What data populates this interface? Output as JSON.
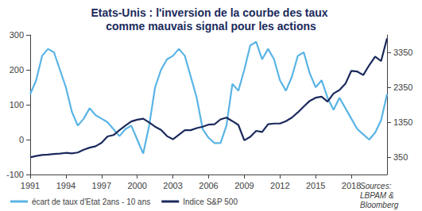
{
  "chart_data": {
    "type": "line",
    "title": "Etats-Unis : l'inversion de la courbe des taux comme mauvais signal pour les actions",
    "annotation": "Sources: LBPAM & Bloomberg",
    "x": [
      1991.0,
      1991.5,
      1992.0,
      1992.5,
      1993.0,
      1993.5,
      1994.0,
      1994.5,
      1995.0,
      1995.5,
      1996.0,
      1996.5,
      1997.0,
      1997.5,
      1998.0,
      1998.5,
      1999.0,
      1999.5,
      2000.0,
      2000.5,
      2001.0,
      2001.5,
      2002.0,
      2002.5,
      2003.0,
      2003.5,
      2004.0,
      2004.5,
      2005.0,
      2005.5,
      2006.0,
      2006.5,
      2007.0,
      2007.5,
      2008.0,
      2008.5,
      2009.0,
      2009.5,
      2010.0,
      2010.5,
      2011.0,
      2011.5,
      2012.0,
      2012.5,
      2013.0,
      2013.5,
      2014.0,
      2014.5,
      2015.0,
      2015.5,
      2016.0,
      2016.5,
      2017.0,
      2017.5,
      2018.0,
      2018.5,
      2019.0,
      2019.5,
      2020.0,
      2020.5,
      2021.0
    ],
    "series": [
      {
        "name": "écart de taux d'Etat 2ans - 10 ans",
        "color": "#5ab4e5",
        "axis": "y",
        "values": [
          130,
          170,
          240,
          260,
          250,
          200,
          150,
          80,
          40,
          60,
          90,
          70,
          60,
          50,
          30,
          10,
          30,
          40,
          0,
          -40,
          40,
          150,
          200,
          230,
          240,
          260,
          240,
          180,
          120,
          30,
          5,
          -10,
          -10,
          40,
          160,
          140,
          200,
          270,
          280,
          230,
          260,
          230,
          170,
          140,
          180,
          240,
          250,
          190,
          150,
          170,
          120,
          85,
          120,
          90,
          60,
          30,
          15,
          0,
          20,
          55,
          130
        ]
      },
      {
        "name": "Indice S&P 500",
        "color": "#1b2a5c",
        "axis": "y2",
        "values": [
          340,
          380,
          410,
          420,
          440,
          450,
          470,
          455,
          480,
          560,
          620,
          660,
          760,
          940,
          980,
          1120,
          1250,
          1370,
          1420,
          1450,
          1340,
          1220,
          1130,
          950,
          860,
          990,
          1120,
          1120,
          1180,
          1220,
          1280,
          1290,
          1430,
          1480,
          1380,
          1270,
          830,
          930,
          1100,
          1070,
          1290,
          1310,
          1310,
          1380,
          1480,
          1630,
          1800,
          1960,
          2050,
          2080,
          1940,
          2170,
          2270,
          2450,
          2820,
          2800,
          2700,
          2980,
          3230,
          3100,
          3750
        ]
      }
    ],
    "xlim": [
      1991,
      2021
    ],
    "xticks": [
      1991,
      1994,
      1997,
      2000,
      2003,
      2006,
      2009,
      2012,
      2015,
      2018
    ],
    "ylim": [
      -100,
      300
    ],
    "yticks": [
      -100,
      0,
      100,
      200,
      300
    ],
    "y2lim": [
      -150,
      3850
    ],
    "y2ticks": [
      350,
      1350,
      2350,
      3350
    ],
    "grid": false,
    "legend": "lower left"
  }
}
